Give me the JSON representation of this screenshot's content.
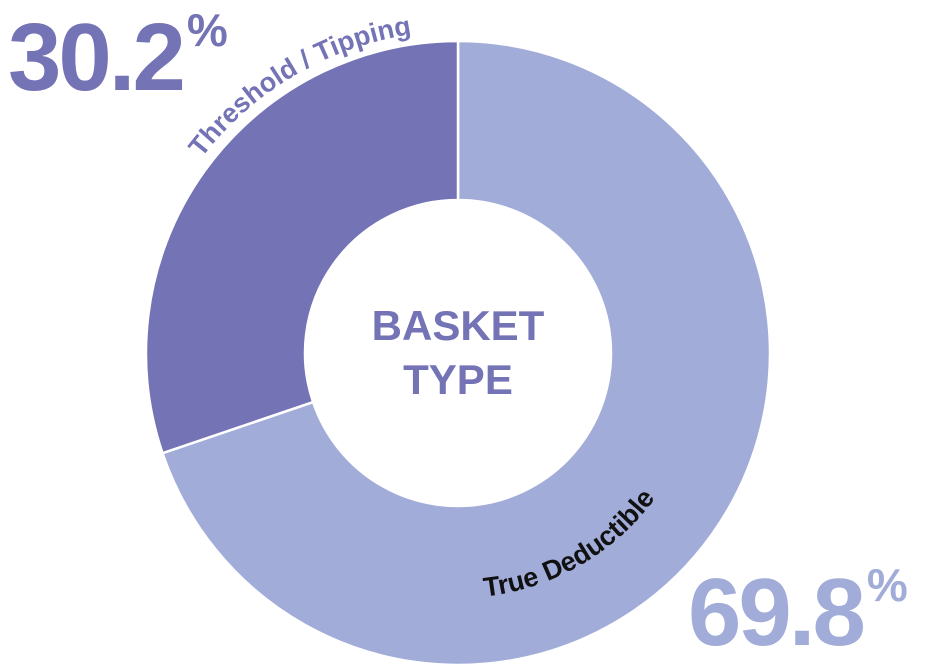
{
  "chart_data": {
    "type": "donut",
    "center_label": [
      "BASKET",
      "TYPE"
    ],
    "categories": [
      "True Deductible",
      "Threshold / Tipping"
    ],
    "values": [
      69.8,
      30.2
    ],
    "unit": "%",
    "colors": [
      "#a1acd9",
      "#7473b5"
    ]
  }
}
